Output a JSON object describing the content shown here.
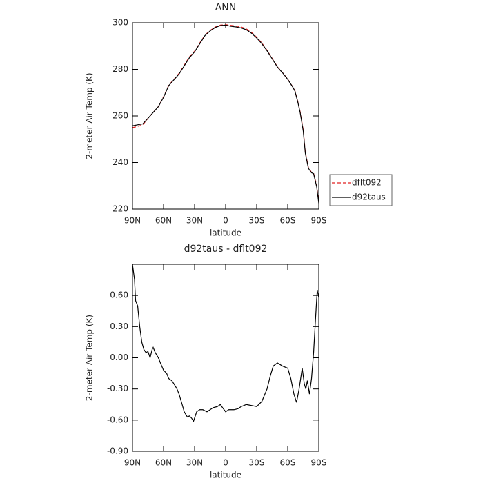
{
  "chart_data": [
    {
      "type": "line",
      "title": "ANN",
      "xlabel": "latitude",
      "ylabel": "2-meter Air Temp (K)",
      "xlim": [
        90,
        -90
      ],
      "xticks": [
        {
          "value": 90,
          "label": "90N"
        },
        {
          "value": 60,
          "label": "60N"
        },
        {
          "value": 30,
          "label": "30N"
        },
        0,
        {
          "value": -30,
          "label": "30S"
        },
        {
          "value": -60,
          "label": "60S"
        },
        {
          "value": -90,
          "label": "90S"
        }
      ],
      "ylim": [
        220,
        300
      ],
      "yticks": [
        220,
        240,
        260,
        280,
        300
      ],
      "legend": "right",
      "x": [
        90,
        85,
        80,
        75,
        70,
        65,
        60,
        55,
        50,
        45,
        40,
        35,
        30,
        25,
        20,
        15,
        10,
        5,
        0,
        -5,
        -10,
        -15,
        -20,
        -25,
        -30,
        -35,
        -40,
        -45,
        -50,
        -55,
        -60,
        -65,
        -67,
        -70,
        -72,
        -75,
        -77,
        -80,
        -83,
        -85,
        -88,
        -90
      ],
      "series": [
        {
          "name": "dflt092",
          "color": "#e02020",
          "dash": true,
          "values": [
            255,
            255.5,
            256.2,
            259,
            261.5,
            264,
            268.2,
            273.2,
            275.7,
            278.3,
            281.8,
            285.4,
            287.8,
            291.3,
            294.7,
            296.7,
            298.2,
            299,
            299.2,
            298.9,
            298.6,
            298.2,
            297.4,
            295.9,
            293.8,
            291.3,
            288.2,
            284.7,
            281.1,
            278.6,
            275.8,
            272.4,
            270.8,
            265.7,
            261.8,
            254,
            244.5,
            237.8,
            235.8,
            235.4,
            230,
            223
          ]
        },
        {
          "name": "d92taus",
          "color": "#000000",
          "dash": false,
          "values": [
            255.8,
            256.2,
            256.6,
            259,
            261.5,
            264,
            268,
            273,
            275.5,
            278,
            281.5,
            285,
            287.5,
            291,
            294.5,
            296.5,
            298,
            298.8,
            299,
            298.5,
            298.2,
            297.8,
            297,
            295.5,
            293.5,
            291,
            288,
            284.5,
            281,
            278.5,
            275.7,
            272.3,
            270.6,
            265.5,
            261.5,
            253.5,
            244,
            237.5,
            235.6,
            235.2,
            229.5,
            222.5
          ]
        }
      ]
    },
    {
      "type": "line",
      "title": "d92taus - dflt092",
      "xlabel": "latitude",
      "ylabel": "2-meter Air Temp (K)",
      "xlim": [
        90,
        -90
      ],
      "xticks": [
        {
          "value": 90,
          "label": "90N"
        },
        {
          "value": 60,
          "label": "60N"
        },
        {
          "value": 30,
          "label": "30N"
        },
        0,
        {
          "value": -30,
          "label": "30S"
        },
        {
          "value": -60,
          "label": "60S"
        },
        {
          "value": -90,
          "label": "90S"
        }
      ],
      "ylim": [
        -0.9,
        0.9
      ],
      "yticks": [
        {
          "value": -0.9,
          "label": "-0.90"
        },
        {
          "value": -0.6,
          "label": "-0.60"
        },
        {
          "value": -0.3,
          "label": "-0.30"
        },
        {
          "value": 0,
          "label": "0.00"
        },
        {
          "value": 0.3,
          "label": "0.30"
        },
        {
          "value": 0.6,
          "label": "0.60"
        }
      ],
      "x": [
        90,
        88,
        87,
        85,
        83,
        81,
        79,
        77,
        75,
        73,
        71,
        70,
        68,
        65,
        63,
        60,
        57,
        55,
        52,
        50,
        47,
        45,
        42,
        40,
        37,
        35,
        33,
        31,
        28,
        25,
        22,
        18,
        15,
        12,
        8,
        5,
        3,
        0,
        -3,
        -8,
        -12,
        -15,
        -20,
        -25,
        -30,
        -35,
        -40,
        -43,
        -46,
        -50,
        -55,
        -60,
        -63,
        -66,
        -68.5,
        -71,
        -74,
        -76,
        -77.5,
        -79,
        -81,
        -83,
        -85,
        -87,
        -88.5,
        -90
      ],
      "series": [
        {
          "name": "d92taus - dflt092",
          "color": "#000000",
          "dash": false,
          "values": [
            0.9,
            0.75,
            0.55,
            0.5,
            0.3,
            0.15,
            0.08,
            0.05,
            0.06,
            0.0,
            0.08,
            0.1,
            0.05,
            0.0,
            -0.05,
            -0.12,
            -0.15,
            -0.2,
            -0.22,
            -0.25,
            -0.3,
            -0.35,
            -0.45,
            -0.52,
            -0.57,
            -0.56,
            -0.58,
            -0.61,
            -0.52,
            -0.5,
            -0.5,
            -0.52,
            -0.5,
            -0.48,
            -0.47,
            -0.45,
            -0.48,
            -0.52,
            -0.5,
            -0.5,
            -0.49,
            -0.47,
            -0.45,
            -0.46,
            -0.47,
            -0.42,
            -0.3,
            -0.18,
            -0.08,
            -0.05,
            -0.08,
            -0.1,
            -0.2,
            -0.35,
            -0.43,
            -0.3,
            -0.1,
            -0.25,
            -0.3,
            -0.22,
            -0.35,
            -0.2,
            0.05,
            0.4,
            0.65,
            0.58
          ]
        }
      ]
    }
  ]
}
